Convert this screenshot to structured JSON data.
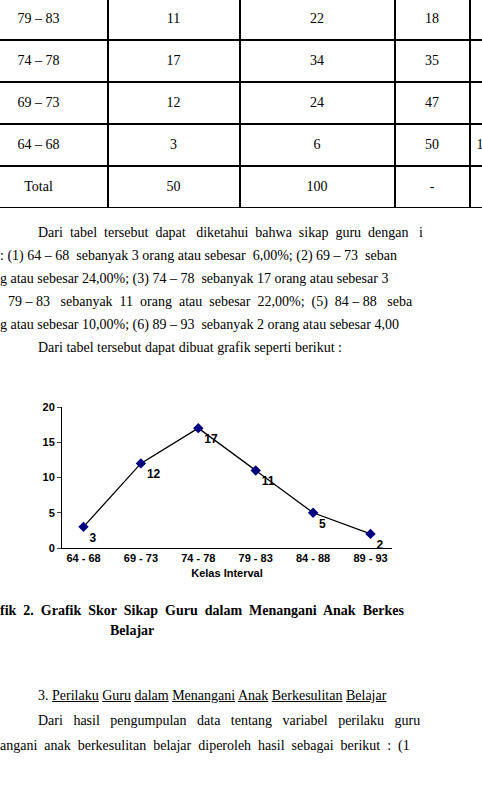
{
  "table": {
    "rows": [
      [
        "79 – 83",
        "11",
        "22",
        "18",
        null
      ],
      [
        "74 – 78",
        "17",
        "34",
        "35",
        null
      ],
      [
        "69 – 73",
        "12",
        "24",
        "47",
        null
      ],
      [
        "64 – 68",
        "3",
        "6",
        "50",
        "1"
      ],
      [
        "Total",
        "50",
        "100",
        "-",
        null
      ]
    ]
  },
  "paragraph": {
    "lines": [
      "Dari  tabel  tersebut  dapat   diketahui  bahwa  sikap  guru  dengan   i",
      ": (1) 64 – 68  sebanyak 3 orang atau sebesar  6,00%; (2) 69 – 73  seban",
      "g atau sebesar 24,00%; (3) 74 – 78  sebanyak 17 orang atau sebesar 3",
      "79 – 83   sebanyak  11  orang  atau  sebesar  22,00%;  (5)  84 – 88   seba",
      "g atau sebesar 10,00%; (6) 89 – 93  sebanyak 2 orang atau sebesar 4,00",
      "Dari tabel tersebut dapat dibuat grafik seperti berikut :"
    ]
  },
  "chart_data": {
    "type": "line",
    "categories": [
      "64 - 68",
      "69 - 73",
      "74 - 78",
      "79 - 83",
      "84 - 88",
      "89 - 93"
    ],
    "values": [
      3,
      12,
      17,
      11,
      5,
      2
    ],
    "color": "#000080",
    "marker": "diamond",
    "x_label": "Kelas Interval",
    "ylim": [
      0,
      20
    ],
    "yticks": [
      0,
      5,
      10,
      15,
      20
    ],
    "grid": false,
    "data_labels": true
  },
  "caption": {
    "lines": [
      "fik  2.  Grafik  Skor  Sikap  Guru  dalam  Menangani  Anak  Berkes",
      "Belajar"
    ]
  },
  "section": {
    "number": "3.",
    "heading": "Perilaku Guru dalam Menangani Anak Berkesulitan Belajar",
    "lines": [
      "Dari   hasil   pengumpulan   data   tentang   variabel   perilaku   guru",
      "angani  anak  berkesulitan  belajar  diperoleh  hasil  sebagai  berikut  :  (1"
    ]
  }
}
